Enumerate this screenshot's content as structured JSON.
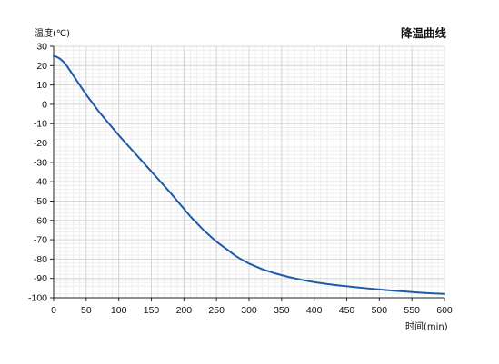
{
  "chart_data": {
    "type": "line",
    "title": "降温曲线",
    "ylabel": "温度(℃)",
    "xlabel": "时间(min)",
    "xlim": [
      0,
      600
    ],
    "ylim": [
      -100,
      30
    ],
    "x_ticks": [
      0,
      50,
      100,
      150,
      200,
      250,
      300,
      350,
      400,
      450,
      500,
      550,
      600
    ],
    "y_ticks": [
      30,
      20,
      10,
      0,
      -10,
      -20,
      -30,
      -40,
      -50,
      -60,
      -70,
      -80,
      -90,
      -100
    ],
    "x_minor_step": 10,
    "y_minor_step": 2,
    "grid": true,
    "line_color": "#1f5aa6",
    "series": [
      {
        "x": [
          0,
          5,
          10,
          15,
          20,
          25,
          30,
          40,
          50,
          60,
          70,
          80,
          90,
          100,
          120,
          140,
          160,
          180,
          190,
          200,
          210,
          220,
          230,
          240,
          250,
          260,
          270,
          280,
          290,
          300,
          320,
          340,
          360,
          380,
          400,
          420,
          440,
          460,
          480,
          500,
          520,
          540,
          560,
          580,
          600
        ],
        "y": [
          25,
          24.5,
          23.5,
          22,
          20,
          17.5,
          15,
          10,
          5,
          0.5,
          -4,
          -8,
          -12,
          -16,
          -23.5,
          -31,
          -38.5,
          -46,
          -50,
          -54,
          -58,
          -61.5,
          -65,
          -68,
          -71,
          -73.5,
          -76,
          -78.5,
          -80.5,
          -82.3,
          -85.2,
          -87.4,
          -89.2,
          -90.7,
          -91.9,
          -92.9,
          -93.7,
          -94.4,
          -95.1,
          -95.7,
          -96.3,
          -96.8,
          -97.3,
          -97.7,
          -98
        ]
      }
    ]
  }
}
